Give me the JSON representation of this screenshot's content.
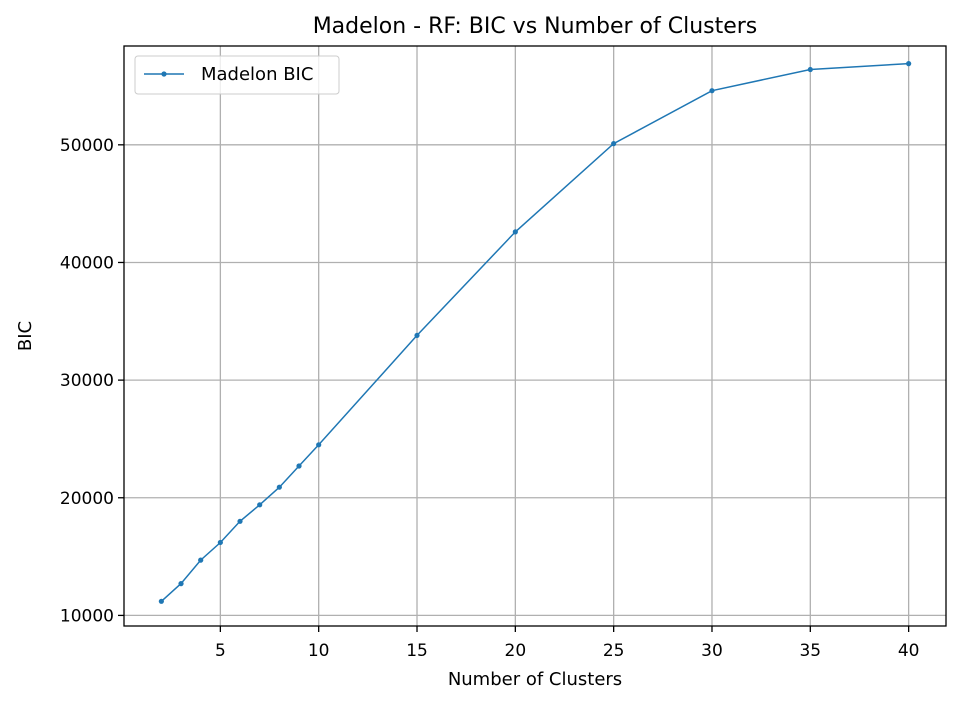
{
  "chart_data": {
    "type": "line",
    "title": "Madelon - RF: BIC vs Number of Clusters",
    "xlabel": "Number of Clusters",
    "ylabel": "BIC",
    "xlim": [
      0.1,
      41.9
    ],
    "ylim": [
      9100,
      58400
    ],
    "xticks": [
      5,
      10,
      15,
      20,
      25,
      30,
      35,
      40
    ],
    "yticks": [
      10000,
      20000,
      30000,
      40000,
      50000
    ],
    "grid": true,
    "legend_position": "upper-left",
    "series": [
      {
        "name": "Madelon BIC",
        "color": "#1f77b4",
        "marker": "dot",
        "x": [
          2,
          3,
          4,
          5,
          6,
          7,
          8,
          9,
          10,
          15,
          20,
          25,
          30,
          35,
          40
        ],
        "y": [
          11200,
          12700,
          14700,
          16200,
          18000,
          19400,
          20900,
          22700,
          24500,
          33800,
          42600,
          50100,
          54600,
          56400,
          56900
        ]
      }
    ]
  }
}
